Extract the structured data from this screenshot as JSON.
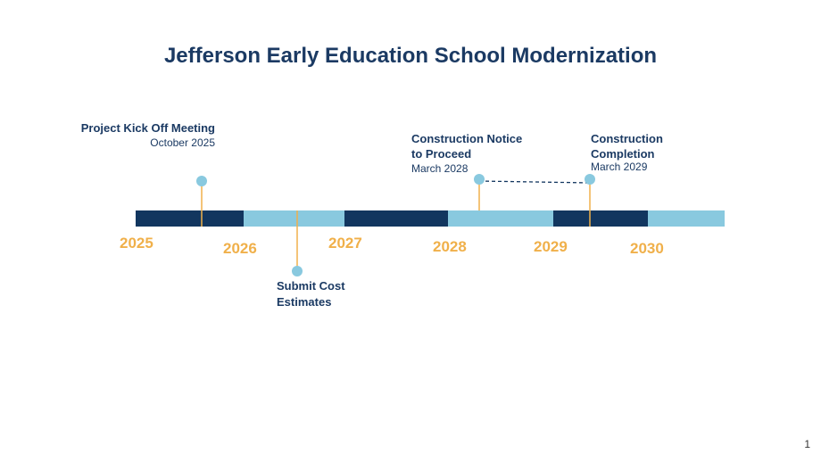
{
  "header": {
    "title": "Jefferson Early Education School Modernization"
  },
  "timeline": {
    "years": [
      "2025",
      "2026",
      "2027",
      "2028",
      "2029",
      "2030"
    ]
  },
  "events": [
    {
      "lines": [
        "Project Kick Off Meeting"
      ],
      "date": "October 2025"
    },
    {
      "lines": [
        "Submit Cost",
        "Estimates"
      ]
    },
    {
      "lines": [
        "Construction Notice",
        "to Proceed"
      ],
      "date": "March 2028"
    },
    {
      "lines": [
        "Construction",
        "Completion"
      ],
      "date": "March 2029"
    }
  ],
  "footer": {
    "page": "1"
  }
}
